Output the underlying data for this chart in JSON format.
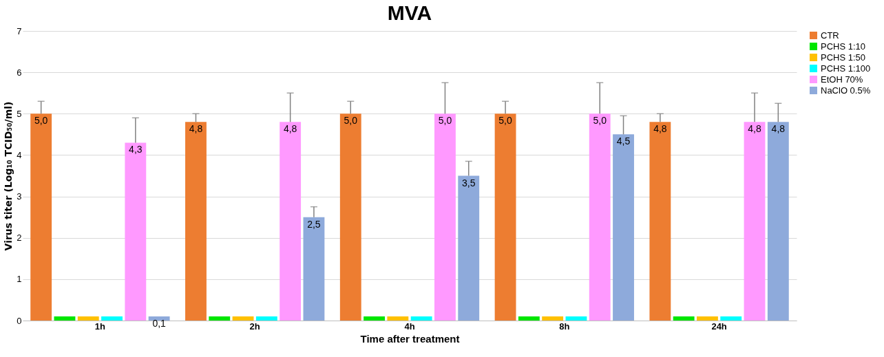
{
  "chart_data": {
    "type": "bar",
    "title": "MVA",
    "xlabel": "Time after treatment",
    "ylabel": "Virus titer (Log₁₀ TCID₅₀/ml)",
    "categories": [
      "1h",
      "2h",
      "4h",
      "8h",
      "24h"
    ],
    "ylim": [
      0,
      7
    ],
    "yticks": [
      0,
      1,
      2,
      3,
      4,
      5,
      6,
      7
    ],
    "grid": "y",
    "legend": "right",
    "series": [
      {
        "name": "CTR",
        "color": "#ed7d31",
        "values": [
          5.0,
          4.8,
          5.0,
          5.0,
          4.8
        ],
        "errors": [
          [
            5.0,
            5.3
          ],
          [
            4.8,
            5.0
          ],
          [
            5.0,
            5.3
          ],
          [
            5.0,
            5.3
          ],
          [
            4.8,
            5.0
          ]
        ],
        "value_labels": [
          "5,0",
          "4,8",
          "5,0",
          "5,0",
          "4,8"
        ]
      },
      {
        "name": "PCHS 1:10",
        "color": "#00e600",
        "values": [
          0.1,
          0.1,
          0.1,
          0.1,
          0.1
        ]
      },
      {
        "name": "PCHS 1:50",
        "color": "#ffc000",
        "values": [
          0.1,
          0.1,
          0.1,
          0.1,
          0.1
        ]
      },
      {
        "name": "PCHS 1:100",
        "color": "#00ffff",
        "values": [
          0.1,
          0.1,
          0.1,
          0.1,
          0.1
        ]
      },
      {
        "name": "EtOH 70%",
        "color": "#ff99ff",
        "values": [
          4.3,
          4.8,
          5.0,
          5.0,
          4.8
        ],
        "errors": [
          [
            4.3,
            4.9
          ],
          [
            4.8,
            5.5
          ],
          [
            5.0,
            5.75
          ],
          [
            5.0,
            5.75
          ],
          [
            4.8,
            5.5
          ]
        ],
        "value_labels": [
          "4,3",
          "4,8",
          "5,0",
          "5,0",
          "4,8"
        ]
      },
      {
        "name": "NaClO 0.5%",
        "color": "#8eaadb",
        "values": [
          0.1,
          2.5,
          3.5,
          4.5,
          4.8
        ],
        "errors": [
          null,
          [
            2.5,
            2.75
          ],
          [
            3.5,
            3.85
          ],
          [
            4.5,
            4.95
          ],
          [
            4.8,
            5.25
          ]
        ],
        "value_labels": [
          "0,1",
          "2,5",
          "3,5",
          "4,5",
          "4,8"
        ]
      }
    ]
  }
}
